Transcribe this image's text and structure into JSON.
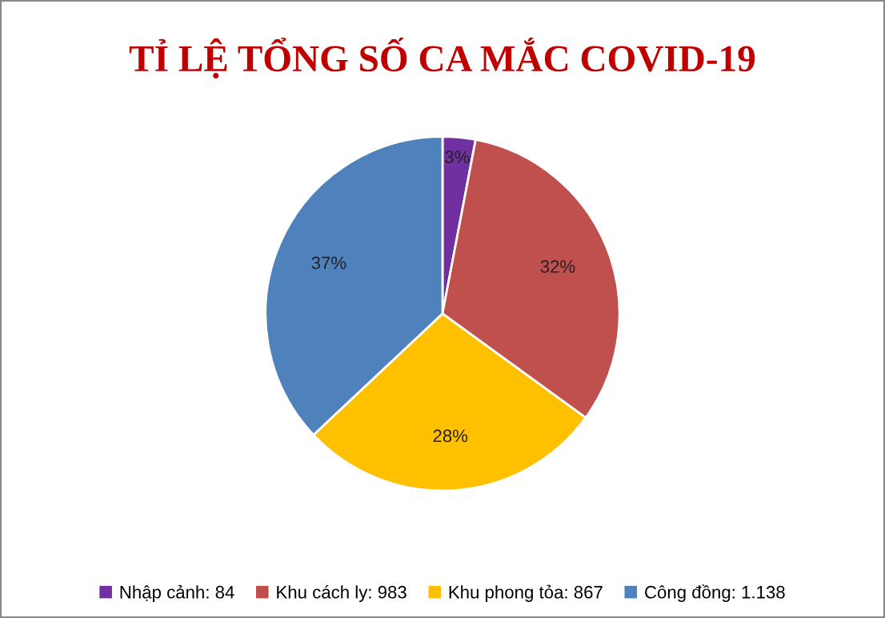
{
  "chart_data": {
    "type": "pie",
    "title": "TỈ LỆ TỔNG SỐ CA MẮC COVID-19",
    "categories": [
      "Nhập cảnh: 84",
      "Khu cách ly: 983",
      "Khu phong tỏa: 867",
      "Công đồng: 1.138"
    ],
    "values": [
      3,
      32,
      28,
      37
    ],
    "value_labels": [
      "3%",
      "32%",
      "28%",
      "37%"
    ],
    "colors": [
      "#7030a0",
      "#c0504d",
      "#ffc000",
      "#4f81bd"
    ],
    "legend": "bottom"
  }
}
